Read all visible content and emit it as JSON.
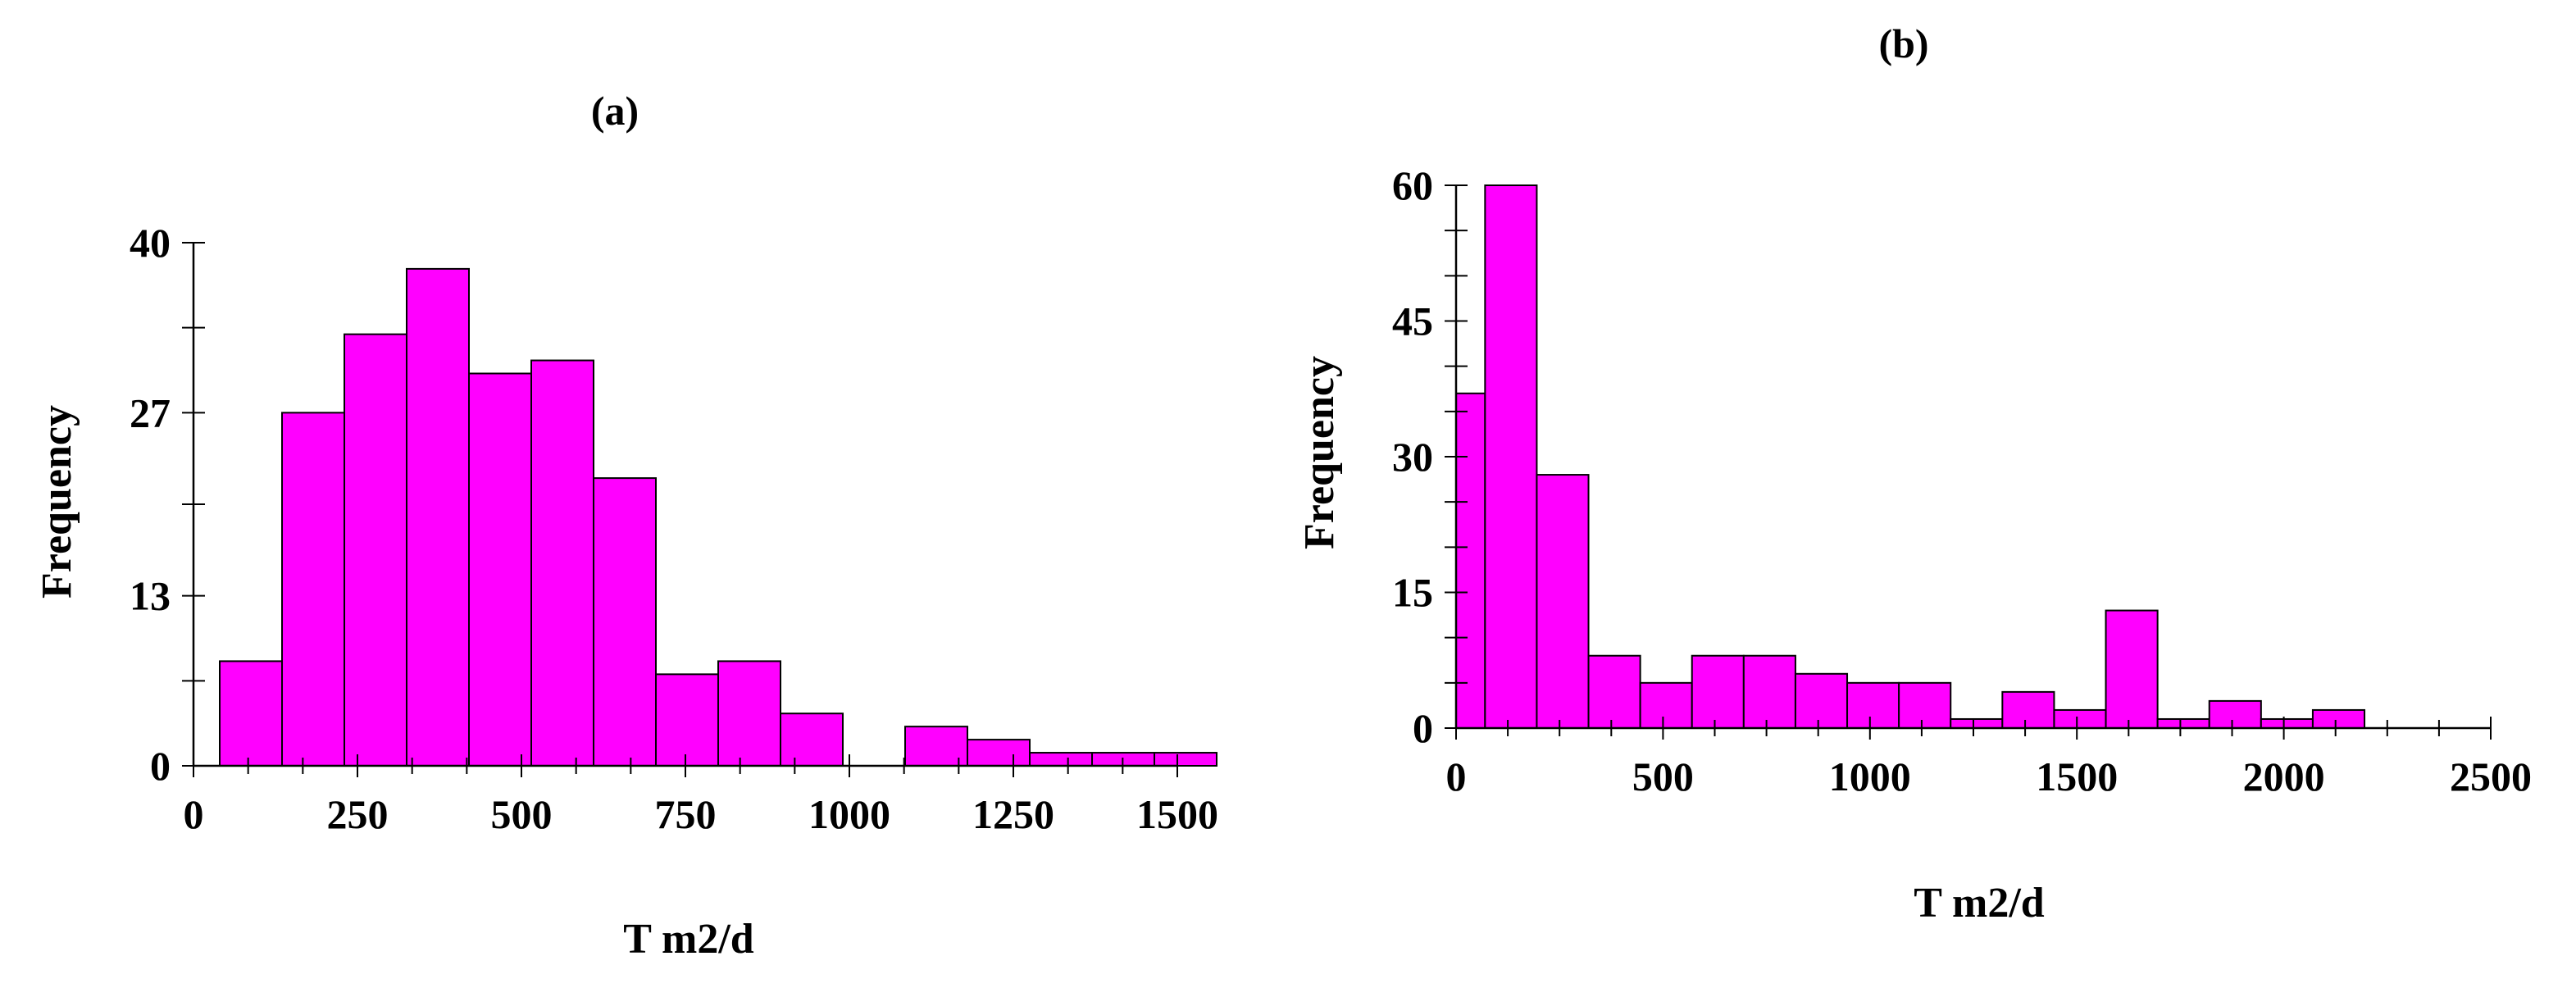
{
  "colors": {
    "bar_fill": "#ff00ff",
    "bar_stroke": "#000000",
    "axis": "#000000"
  },
  "chart_data": [
    {
      "type": "bar",
      "title": "(a)",
      "xlabel": "T m2/d",
      "ylabel": "Frequency",
      "xlim": [
        0,
        1500
      ],
      "ylim": [
        0,
        40
      ],
      "xticks": [
        0,
        250,
        500,
        750,
        1000,
        1250,
        1500
      ],
      "xtick_labels": [
        "0",
        "250",
        "500",
        "750",
        "1000",
        "1250",
        "1500"
      ],
      "yticks": [
        0,
        13,
        27,
        40
      ],
      "ytick_labels": [
        "0",
        "13",
        "27",
        "40"
      ],
      "bin_width": 95,
      "bins": [
        {
          "x0": 40,
          "x1": 135,
          "value": 8
        },
        {
          "x0": 135,
          "x1": 230,
          "value": 27
        },
        {
          "x0": 230,
          "x1": 325,
          "value": 33
        },
        {
          "x0": 325,
          "x1": 420,
          "value": 38
        },
        {
          "x0": 420,
          "x1": 515,
          "value": 30
        },
        {
          "x0": 515,
          "x1": 610,
          "value": 31
        },
        {
          "x0": 610,
          "x1": 705,
          "value": 22
        },
        {
          "x0": 705,
          "x1": 800,
          "value": 7
        },
        {
          "x0": 800,
          "x1": 895,
          "value": 8
        },
        {
          "x0": 895,
          "x1": 990,
          "value": 4
        },
        {
          "x0": 990,
          "x1": 1085,
          "value": 0
        },
        {
          "x0": 1085,
          "x1": 1180,
          "value": 3
        },
        {
          "x0": 1180,
          "x1": 1275,
          "value": 2
        },
        {
          "x0": 1275,
          "x1": 1370,
          "value": 1
        },
        {
          "x0": 1370,
          "x1": 1465,
          "value": 1
        },
        {
          "x0": 1465,
          "x1": 1560,
          "value": 1
        }
      ],
      "grid": false,
      "legend": "none"
    },
    {
      "type": "bar",
      "title": "(b)",
      "xlabel": "T m2/d",
      "ylabel": "Frequency",
      "xlim": [
        0,
        2500
      ],
      "ylim": [
        0,
        60
      ],
      "xticks": [
        0,
        500,
        1000,
        1500,
        2000,
        2500
      ],
      "xtick_labels": [
        "0",
        "500",
        "1000",
        "1500",
        "2000",
        "2500"
      ],
      "yticks": [
        0,
        15,
        30,
        45,
        60
      ],
      "ytick_labels": [
        "0",
        "15",
        "30",
        "45",
        "60"
      ],
      "bin_width": 125,
      "bins": [
        {
          "x0": 0,
          "x1": 70,
          "value": 37
        },
        {
          "x0": 70,
          "x1": 195,
          "value": 60
        },
        {
          "x0": 195,
          "x1": 320,
          "value": 28
        },
        {
          "x0": 320,
          "x1": 445,
          "value": 8
        },
        {
          "x0": 445,
          "x1": 570,
          "value": 5
        },
        {
          "x0": 570,
          "x1": 695,
          "value": 8
        },
        {
          "x0": 695,
          "x1": 820,
          "value": 8
        },
        {
          "x0": 820,
          "x1": 945,
          "value": 6
        },
        {
          "x0": 945,
          "x1": 1070,
          "value": 5
        },
        {
          "x0": 1070,
          "x1": 1195,
          "value": 5
        },
        {
          "x0": 1195,
          "x1": 1320,
          "value": 1
        },
        {
          "x0": 1320,
          "x1": 1445,
          "value": 4
        },
        {
          "x0": 1445,
          "x1": 1570,
          "value": 2
        },
        {
          "x0": 1570,
          "x1": 1695,
          "value": 13
        },
        {
          "x0": 1695,
          "x1": 1820,
          "value": 1
        },
        {
          "x0": 1820,
          "x1": 1945,
          "value": 3
        },
        {
          "x0": 1945,
          "x1": 2070,
          "value": 1
        },
        {
          "x0": 2070,
          "x1": 2195,
          "value": 2
        }
      ],
      "grid": false,
      "legend": "none"
    }
  ]
}
